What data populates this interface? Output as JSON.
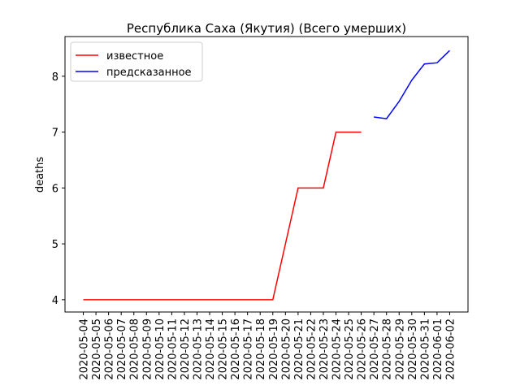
{
  "chart_data": {
    "type": "line",
    "title": "Республика Саха (Якутия) (Всего умерших)",
    "y_label": "deaths",
    "categories": [
      "2020-05-04",
      "2020-05-05",
      "2020-05-06",
      "2020-05-07",
      "2020-05-08",
      "2020-05-09",
      "2020-05-10",
      "2020-05-11",
      "2020-05-12",
      "2020-05-13",
      "2020-05-14",
      "2020-05-15",
      "2020-05-16",
      "2020-05-17",
      "2020-05-18",
      "2020-05-19",
      "2020-05-20",
      "2020-05-21",
      "2020-05-22",
      "2020-05-23",
      "2020-05-24",
      "2020-05-25",
      "2020-05-26",
      "2020-05-27",
      "2020-05-28",
      "2020-05-29",
      "2020-05-30",
      "2020-05-31",
      "2020-06-01",
      "2020-06-02"
    ],
    "series": [
      {
        "name": "известное",
        "color": "#ff0000",
        "values": [
          4,
          4,
          4,
          4,
          4,
          4,
          4,
          4,
          4,
          4,
          4,
          4,
          4,
          4,
          4,
          4,
          5,
          6,
          6,
          6,
          7,
          7,
          7,
          null,
          null,
          null,
          null,
          null,
          null,
          null
        ]
      },
      {
        "name": "предсказанное",
        "color": "#0000ff",
        "values": [
          null,
          null,
          null,
          null,
          null,
          null,
          null,
          null,
          null,
          null,
          null,
          null,
          null,
          null,
          null,
          null,
          null,
          null,
          null,
          null,
          null,
          null,
          null,
          7.27,
          7.24,
          7.55,
          7.93,
          8.22,
          8.24,
          8.46
        ]
      }
    ],
    "ylim": [
      3.78,
      8.71
    ],
    "yticks": [
      4,
      5,
      6,
      7,
      8
    ],
    "legend": "upper left"
  }
}
